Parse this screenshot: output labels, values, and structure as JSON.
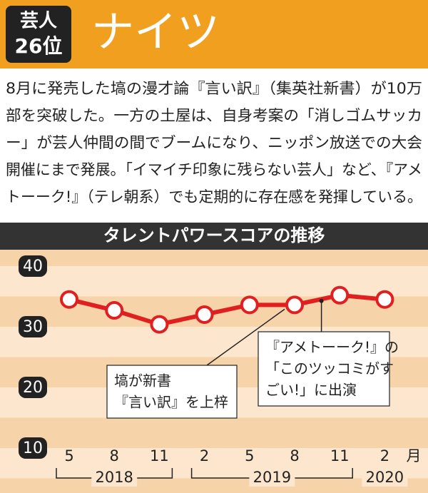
{
  "header": {
    "rank_line1": "芸人",
    "rank_line2": "26位",
    "title": "ナイツ"
  },
  "paragraph": [
    "8月に発売した塙の漫才論『言い訳』（集英社新書）が10万",
    "部を突破した。一方の土屋は、自身考案の「消しゴムサッカ",
    "ー」が芸人仲間の間でブームになり、ニッポン放送での大会",
    "開催にまで発展。「イマイチ印象に残らない芸人」など、『アメ",
    "トーーク!』（テレ朝系）でも定期的に存在感を発揮している。"
  ],
  "chart_data": {
    "type": "line",
    "title": "タレントパワースコアの推移",
    "categories": [
      "5",
      "8",
      "11",
      "2",
      "5",
      "8",
      "11",
      "2"
    ],
    "x_unit": "月",
    "years": [
      {
        "label": "2018",
        "from": 0,
        "to": 2
      },
      {
        "label": "2019",
        "from": 3,
        "to": 6
      },
      {
        "label": "2020",
        "from": 7,
        "to": 7
      }
    ],
    "series": [
      {
        "color": "#e02020",
        "values": [
          34.5,
          32.7,
          30.4,
          32.0,
          33.6,
          33.6,
          35.2,
          34.5
        ]
      }
    ],
    "ylim": [
      10,
      42.7
    ],
    "yticks": [
      10,
      20,
      30,
      40
    ],
    "annotations": [
      {
        "lines": [
          "塙が新書",
          "『言い訳』を上梓"
        ],
        "point": 5
      },
      {
        "lines": [
          "『アメトーーク!』の",
          "「このツッコミがす",
          "ごい!」に出演"
        ],
        "point": 6
      }
    ]
  }
}
